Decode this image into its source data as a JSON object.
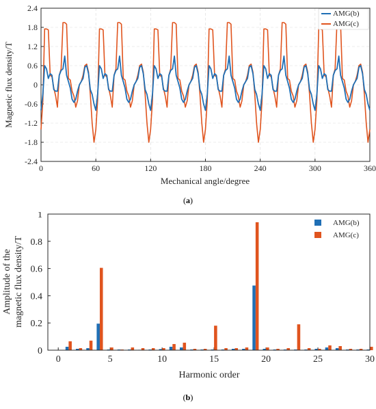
{
  "colors": {
    "series_b": "#1f6fb5",
    "series_c": "#e0541e",
    "axis": "#262626",
    "grid": "#d9d9d9"
  },
  "chart_data": [
    {
      "type": "line",
      "caption_prefix": "(",
      "caption_letter": "a",
      "caption_suffix": ")",
      "xlabel": "Mechanical angle/degree",
      "ylabel": "Magnetic flux density/T",
      "xlim": [
        0,
        360
      ],
      "ylim": [
        -2.4,
        2.4
      ],
      "xticks": [
        "0",
        "60",
        "120",
        "180",
        "240",
        "300",
        "360"
      ],
      "yticks": [
        "-2.4",
        "-1.8",
        "-1.2",
        "-0.6",
        "0",
        "0.6",
        "1.2",
        "1.8",
        "2.4"
      ],
      "grid": true,
      "legend_position": "top-right",
      "periods": 6,
      "x": [
        0,
        2,
        4,
        6,
        8,
        10,
        12,
        14,
        16,
        18,
        20,
        22,
        24,
        26,
        28,
        30,
        32,
        34,
        36,
        38,
        40,
        42,
        44,
        46,
        48,
        50,
        52,
        54,
        56,
        58,
        60
      ],
      "series": [
        {
          "name": "AMG(b)",
          "values": [
            -0.8,
            -0.3,
            0.6,
            0.5,
            0.2,
            0.35,
            0.3,
            -0.15,
            -0.2,
            -0.2,
            0.3,
            0.45,
            0.5,
            0.9,
            0.3,
            0.1,
            -0.1,
            -0.45,
            -0.55,
            -0.45,
            -0.2,
            0.0,
            0.1,
            0.2,
            0.55,
            0.6,
            0.35,
            -0.15,
            -0.3,
            -0.6,
            -0.8
          ]
        },
        {
          "name": "AMG(c)",
          "values": [
            -1.4,
            -0.5,
            1.75,
            1.75,
            1.72,
            0.3,
            0.25,
            -0.1,
            -0.35,
            -0.7,
            0.3,
            0.5,
            1.95,
            1.95,
            1.9,
            0.2,
            0.15,
            -0.2,
            -0.35,
            -0.7,
            -0.5,
            0.0,
            0.1,
            0.3,
            0.6,
            0.65,
            0.4,
            -0.3,
            -1.2,
            -1.8,
            -1.4
          ]
        }
      ]
    },
    {
      "type": "bar",
      "caption_prefix": "(",
      "caption_letter": "b",
      "caption_suffix": ")",
      "xlabel": "Harmonic order",
      "ylabel_line1": "Amplitude of the",
      "ylabel_line2": "magnetic flux density/T",
      "xlim": [
        -1,
        30
      ],
      "ylim": [
        0,
        1
      ],
      "xticks": [
        "0",
        "5",
        "10",
        "15",
        "20",
        "25",
        "30"
      ],
      "yticks": [
        "0",
        "0.2",
        "0.4",
        "0.6",
        "0.8",
        "1"
      ],
      "legend_position": "top-right",
      "categories": [
        1,
        2,
        3,
        4,
        5,
        6,
        7,
        8,
        9,
        10,
        11,
        12,
        13,
        14,
        15,
        16,
        17,
        18,
        19,
        20,
        21,
        22,
        23,
        24,
        25,
        26,
        27,
        28,
        29,
        30
      ],
      "series": [
        {
          "name": "AMG(b)",
          "values": [
            0.025,
            0.01,
            0.015,
            0.195,
            0.005,
            0.005,
            0.005,
            0.003,
            0.005,
            0.008,
            0.025,
            0.02,
            0.005,
            0.005,
            0.005,
            0.005,
            0.01,
            0.01,
            0.475,
            0.01,
            0.005,
            0.005,
            0.005,
            0.005,
            0.01,
            0.02,
            0.015,
            0.005,
            0.005,
            0.005
          ]
        },
        {
          "name": "AMG(c)",
          "values": [
            0.065,
            0.015,
            0.07,
            0.605,
            0.02,
            0.005,
            0.02,
            0.015,
            0.015,
            0.015,
            0.045,
            0.055,
            0.01,
            0.01,
            0.18,
            0.015,
            0.015,
            0.02,
            0.94,
            0.02,
            0.01,
            0.015,
            0.19,
            0.015,
            0.01,
            0.035,
            0.03,
            0.01,
            0.01,
            0.025
          ]
        }
      ]
    }
  ]
}
